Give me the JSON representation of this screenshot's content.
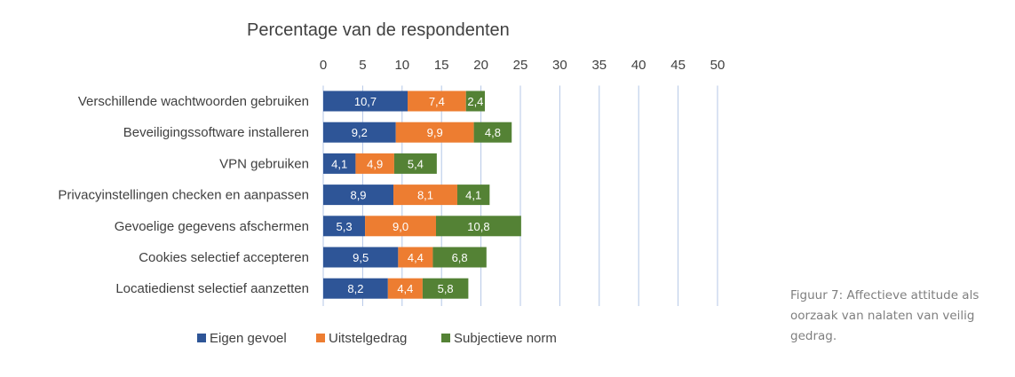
{
  "chart_data": {
    "type": "bar",
    "orientation": "horizontal",
    "stacked": true,
    "title": "Percentage van de respondenten",
    "xlabel": "",
    "ylabel": "",
    "xlim": [
      0,
      50
    ],
    "ticks": [
      "0",
      "5",
      "10",
      "15",
      "20",
      "25",
      "30",
      "35",
      "40",
      "45",
      "50"
    ],
    "grid": true,
    "legend_position": "bottom",
    "categories": [
      "Verschillende wachtwoorden gebruiken",
      "Beveiligingssoftware installeren",
      "VPN gebruiken",
      "Privacyinstellingen checken en aanpassen",
      "Gevoelige gegevens afschermen",
      "Cookies selectief accepteren",
      "Locatiedienst selectief aanzetten"
    ],
    "series": [
      {
        "name": "Eigen gevoel",
        "color": "#2e5597",
        "values": [
          10.7,
          9.2,
          4.1,
          8.9,
          5.3,
          9.5,
          8.2
        ],
        "labels": [
          "10,7",
          "9,2",
          "4,1",
          "8,9",
          "5,3",
          "9,5",
          "8,2"
        ]
      },
      {
        "name": "Uitstelgedrag",
        "color": "#ed7d31",
        "values": [
          7.4,
          9.9,
          4.9,
          8.1,
          9.0,
          4.4,
          4.4
        ],
        "labels": [
          "7,4",
          "9,9",
          "4,9",
          "8,1",
          "9,0",
          "4,4",
          "4,4"
        ]
      },
      {
        "name": "Subjectieve norm",
        "color": "#548235",
        "values": [
          2.4,
          4.8,
          5.4,
          4.1,
          10.8,
          6.8,
          5.8
        ],
        "labels": [
          "2,4",
          "4,8",
          "5,4",
          "4,1",
          "10,8",
          "6,8",
          "5,8"
        ]
      }
    ]
  },
  "caption": "Figuur 7: Affectieve attitude als oorzaak van nalaten van veilig gedrag."
}
